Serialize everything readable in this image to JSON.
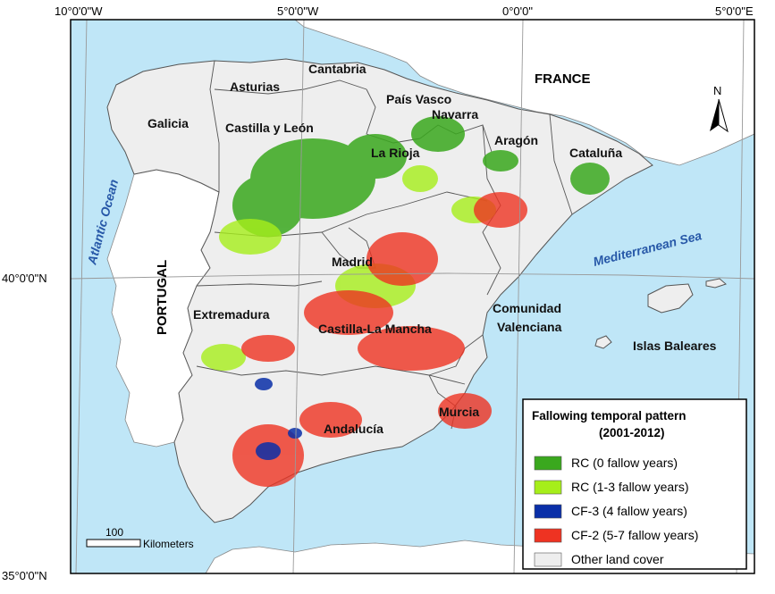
{
  "coordinates": {
    "top": [
      "10°0'0\"W",
      "5°0'0\"W",
      "0°0'0\"",
      "5°0'0\"E"
    ],
    "left": [
      "40°0'0\"N",
      "35°0'0\"N"
    ]
  },
  "countries": {
    "portugal": "PORTUGAL",
    "france": "FRANCE"
  },
  "seas": {
    "atlantic": "Atlantic Ocean",
    "mediterranean": "Mediterranean Sea"
  },
  "regions": {
    "cantabria": "Cantabria",
    "asturias": "Asturias",
    "pais_vasco": "País Vasco",
    "navarra": "Navarra",
    "galicia": "Galicia",
    "castilla_leon": "Castilla y León",
    "la_rioja": "La Rioja",
    "aragon": "Aragón",
    "cataluna": "Cataluña",
    "madrid": "Madrid",
    "extremadura": "Extremadura",
    "castilla_la_mancha": "Castilla-La Mancha",
    "comunidad_valenciana_1": "Comunidad",
    "comunidad_valenciana_2": "Valenciana",
    "islas_baleares": "Islas Baleares",
    "murcia": "Murcia",
    "andalucia": "Andalucía"
  },
  "north_arrow": "N",
  "scale_bar": {
    "value": "100",
    "unit": "Kilometers"
  },
  "legend": {
    "title_line1": "Fallowing temporal pattern",
    "title_line2": "(2001-2012)",
    "items": [
      {
        "label": "RC (0 fallow years)",
        "color": "#3aa81e"
      },
      {
        "label": "RC (1-3 fallow years)",
        "color": "#a6ee1a"
      },
      {
        "label": "CF-3 (4 fallow years)",
        "color": "#0a2fa8"
      },
      {
        "label": "CF-2 (5-7 fallow years)",
        "color": "#ee3322"
      },
      {
        "label": "Other land cover",
        "color": "#eeeeee"
      }
    ]
  },
  "colors": {
    "sea": "#bfe6f7",
    "land_spain": "#eeeeee",
    "land_other": "#ffffff"
  }
}
